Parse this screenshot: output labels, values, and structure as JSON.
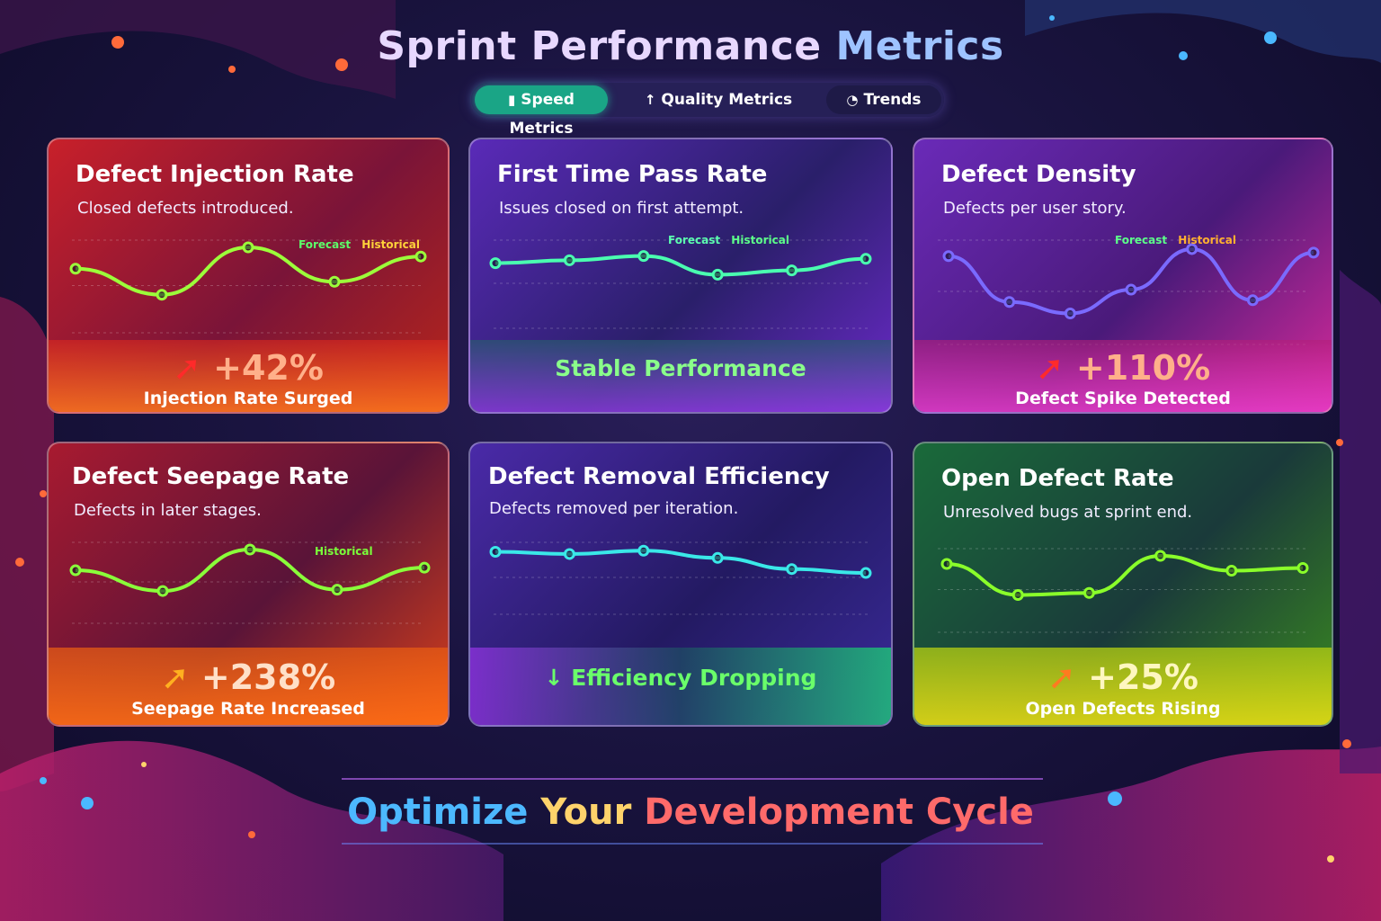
{
  "title": {
    "part1": "Sprint Performance",
    "part2": "Metrics"
  },
  "tabs": [
    {
      "label": "Speed Metrics",
      "icon": "clipboard-icon",
      "active": true
    },
    {
      "label": "Quality Metrics",
      "icon": "arrow-up-icon",
      "active": false
    },
    {
      "label": "Trends",
      "icon": "gauge-icon",
      "active": false
    }
  ],
  "cards": [
    {
      "title": "Defect Injection Rate",
      "subtitle": "Closed defects introduced.",
      "legend": [
        "Forecast",
        "Historical"
      ],
      "value": "+42%",
      "label": "Injection Rate Surged",
      "points": [
        0.72,
        0.38,
        1.0,
        0.55,
        0.88
      ],
      "accent": "#ff3b2f"
    },
    {
      "title": "First Time Pass Rate",
      "subtitle": "Issues closed on first attempt.",
      "legend": [
        "Forecast",
        "Historical"
      ],
      "status": "Stable Performance",
      "points": [
        0.78,
        0.82,
        0.88,
        0.62,
        0.68,
        0.84
      ],
      "accent": "#7a3cff"
    },
    {
      "title": "Defect Density",
      "subtitle": "Defects per user story.",
      "legend": [
        "Forecast",
        "Historical"
      ],
      "value": "+110%",
      "label": "Defect Spike Detected",
      "points": [
        0.9,
        0.38,
        0.25,
        0.52,
        0.98,
        0.4,
        0.94
      ],
      "accent": "#c23cff"
    },
    {
      "title": "Defect Seepage Rate",
      "subtitle": "Defects in later stages.",
      "legend": [
        "Historical"
      ],
      "value": "+238%",
      "label": "Seepage Rate Increased",
      "points": [
        0.68,
        0.36,
        1.0,
        0.38,
        0.72
      ],
      "accent": "#ff4a1f"
    },
    {
      "title": "Defect Removal Efficiency",
      "subtitle": "Defects removed per iteration.",
      "status": "↓ Efficiency Dropping",
      "points": [
        0.96,
        0.92,
        0.98,
        0.85,
        0.65,
        0.58
      ],
      "accent": "#4a3cff"
    },
    {
      "title": "Open Defect Rate",
      "subtitle": "Unresolved bugs at sprint end.",
      "value": "+25%",
      "label": "Open Defects Rising",
      "points": [
        0.88,
        0.42,
        0.45,
        1.0,
        0.78,
        0.82
      ],
      "accent": "#22c23a"
    }
  ],
  "footer": {
    "part1": "Optimize",
    "part2": "Your",
    "part3": "Development Cycle"
  }
}
